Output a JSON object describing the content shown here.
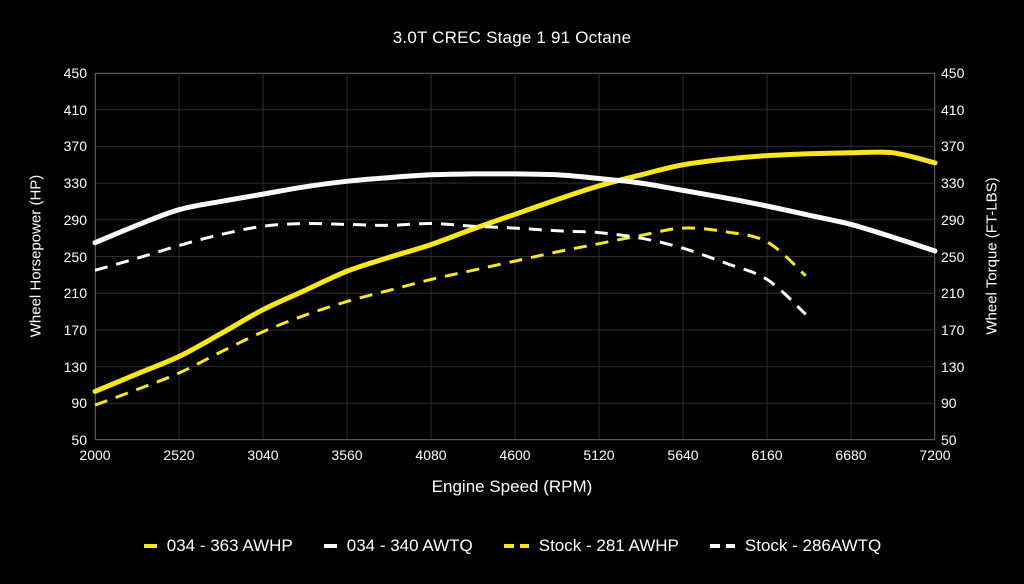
{
  "chart_data": {
    "type": "line",
    "title": "3.0T CREC Stage 1 91 Octane",
    "xlabel": "Engine Speed (RPM)",
    "ylabel_left": "Wheel Horsepower (HP)",
    "ylabel_right": "Wheel Torque (FT-LBS)",
    "xlim": [
      2000,
      7200
    ],
    "ylim": [
      50,
      450
    ],
    "x_ticks": [
      2000,
      2520,
      3040,
      3560,
      4080,
      4600,
      5120,
      5640,
      6160,
      6680,
      7200
    ],
    "y_ticks": [
      50,
      90,
      130,
      170,
      210,
      250,
      290,
      330,
      370,
      410,
      450
    ],
    "grid": true,
    "legend_position": "bottom",
    "colors": {
      "background": "#000000",
      "grid": "#2d2d2d",
      "spine": "#555555",
      "text": "#ffffff",
      "accent_yellow": "#f7e71b",
      "accent_white": "#fafafa"
    },
    "series": [
      {
        "name": "034 - 363 AWHP",
        "color": "#f7e71b",
        "style": "solid",
        "width": 5,
        "x": [
          2000,
          2260,
          2520,
          2780,
          3040,
          3300,
          3560,
          3820,
          4080,
          4340,
          4600,
          4860,
          5120,
          5380,
          5640,
          5900,
          6160,
          6420,
          6680,
          6940,
          7200
        ],
        "values": [
          103,
          122,
          141,
          166,
          192,
          213,
          234,
          249,
          263,
          280,
          296,
          312,
          327,
          339,
          350,
          356,
          360,
          362,
          363,
          363,
          352
        ]
      },
      {
        "name": "034 - 340 AWTQ",
        "color": "#fafafa",
        "style": "solid",
        "width": 5,
        "x": [
          2000,
          2260,
          2520,
          2780,
          3040,
          3300,
          3560,
          3820,
          4080,
          4340,
          4600,
          4860,
          5120,
          5380,
          5640,
          5900,
          6160,
          6420,
          6680,
          6940,
          7200
        ],
        "values": [
          265,
          284,
          301,
          310,
          318,
          326,
          332,
          336,
          339,
          340,
          340,
          339,
          335,
          330,
          322,
          314,
          305,
          295,
          285,
          271,
          256
        ]
      },
      {
        "name": "Stock - 281 AWHP",
        "color": "#f7e71b",
        "style": "dashed",
        "width": 3,
        "x": [
          2000,
          2260,
          2520,
          2780,
          3040,
          3300,
          3560,
          3820,
          4080,
          4340,
          4600,
          4860,
          5120,
          5380,
          5640,
          5900,
          6160,
          6400
        ],
        "values": [
          88,
          105,
          123,
          146,
          168,
          186,
          201,
          213,
          225,
          235,
          245,
          255,
          264,
          273,
          281,
          277,
          266,
          229
        ]
      },
      {
        "name": "Stock - 286AWTQ",
        "color": "#fafafa",
        "style": "dashed",
        "width": 3,
        "x": [
          2000,
          2260,
          2520,
          2780,
          3040,
          3300,
          3560,
          3820,
          4080,
          4340,
          4600,
          4860,
          5120,
          5380,
          5640,
          5900,
          6160,
          6400
        ],
        "values": [
          235,
          248,
          262,
          274,
          283,
          286,
          285,
          284,
          286,
          283,
          281,
          278,
          276,
          270,
          259,
          243,
          225,
          187
        ]
      }
    ]
  }
}
